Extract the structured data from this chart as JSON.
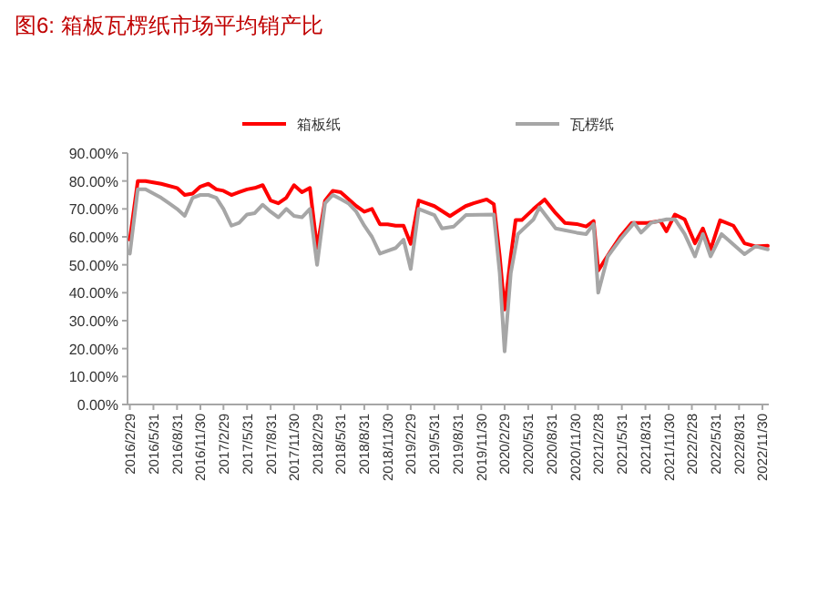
{
  "chart_data": {
    "type": "line",
    "title": "图6:  箱板瓦楞纸市场平均销产比",
    "xlim": [
      "2016-02-20",
      "2022-12-25"
    ],
    "xticks": [
      {
        "value": "2016-02-29",
        "label": "2016/2/29"
      },
      {
        "value": "2016-05-31",
        "label": "2016/5/31"
      },
      {
        "value": "2016-08-31",
        "label": "2016/8/31"
      },
      {
        "value": "2016-11-30",
        "label": "2016/11/30"
      },
      {
        "value": "2017-02-28",
        "label": "2017/2/29"
      },
      {
        "value": "2017-05-31",
        "label": "2017/5/31"
      },
      {
        "value": "2017-08-31",
        "label": "2017/8/31"
      },
      {
        "value": "2017-11-30",
        "label": "2017/11/30"
      },
      {
        "value": "2018-02-28",
        "label": "2018/2/29"
      },
      {
        "value": "2018-05-31",
        "label": "2018/5/31"
      },
      {
        "value": "2018-08-31",
        "label": "2018/8/31"
      },
      {
        "value": "2018-11-30",
        "label": "2018/11/30"
      },
      {
        "value": "2019-02-28",
        "label": "2019/2/29"
      },
      {
        "value": "2019-05-31",
        "label": "2019/5/31"
      },
      {
        "value": "2019-08-31",
        "label": "2019/8/31"
      },
      {
        "value": "2019-11-30",
        "label": "2019/11/30"
      },
      {
        "value": "2020-02-29",
        "label": "2020/2/29"
      },
      {
        "value": "2020-05-31",
        "label": "2020/5/31"
      },
      {
        "value": "2020-08-31",
        "label": "2020/8/31"
      },
      {
        "value": "2020-11-30",
        "label": "2020/11/30"
      },
      {
        "value": "2021-02-28",
        "label": "2021/2/28"
      },
      {
        "value": "2021-05-31",
        "label": "2021/5/31"
      },
      {
        "value": "2021-08-31",
        "label": "2021/8/31"
      },
      {
        "value": "2021-11-30",
        "label": "2021/11/30"
      },
      {
        "value": "2022-02-28",
        "label": "2022/2/28"
      },
      {
        "value": "2022-05-31",
        "label": "2022/5/31"
      },
      {
        "value": "2022-08-31",
        "label": "2022/8/31"
      },
      {
        "value": "2022-11-30",
        "label": "2022/11/30"
      }
    ],
    "ylim": [
      0,
      90
    ],
    "yticks": [
      {
        "value": 0,
        "label": "0.00%"
      },
      {
        "value": 10,
        "label": "10.00%"
      },
      {
        "value": 20,
        "label": "20.00%"
      },
      {
        "value": 30,
        "label": "30.00%"
      },
      {
        "value": 40,
        "label": "40.00%"
      },
      {
        "value": 50,
        "label": "50.00%"
      },
      {
        "value": 60,
        "label": "60.00%"
      },
      {
        "value": 70,
        "label": "70.00%"
      },
      {
        "value": 80,
        "label": "80.00%"
      },
      {
        "value": 90,
        "label": "90.00%"
      }
    ],
    "legend": "top",
    "grid": false,
    "marker": "none",
    "line_style": "solid",
    "series": [
      {
        "name": "箱板纸",
        "color": "#ff0000",
        "x": [
          "2016-02-29",
          "2016-03-31",
          "2016-04-30",
          "2016-06-30",
          "2016-08-31",
          "2016-09-30",
          "2016-10-31",
          "2016-11-30",
          "2016-12-31",
          "2017-01-31",
          "2017-02-28",
          "2017-03-31",
          "2017-04-30",
          "2017-05-31",
          "2017-06-30",
          "2017-07-31",
          "2017-08-31",
          "2017-09-30",
          "2017-10-31",
          "2017-11-30",
          "2017-12-31",
          "2018-01-31",
          "2018-02-28",
          "2018-03-31",
          "2018-04-30",
          "2018-05-31",
          "2018-06-30",
          "2018-07-31",
          "2018-08-31",
          "2018-09-30",
          "2018-10-31",
          "2018-11-30",
          "2018-12-31",
          "2019-01-31",
          "2019-02-28",
          "2019-03-31",
          "2019-04-30",
          "2019-05-31",
          "2019-07-31",
          "2019-09-30",
          "2019-10-31",
          "2019-12-21",
          "2020-01-18",
          "2020-02-10",
          "2020-02-29",
          "2020-03-24",
          "2020-04-12",
          "2020-05-06",
          "2020-06-21",
          "2020-08-03",
          "2020-09-15",
          "2020-10-21",
          "2020-12-06",
          "2021-01-12",
          "2021-02-10",
          "2021-02-28",
          "2021-04-18",
          "2021-05-24",
          "2021-07-09",
          "2021-09-09",
          "2021-10-28",
          "2021-11-21",
          "2021-12-24",
          "2022-01-31",
          "2022-03-12",
          "2022-04-12",
          "2022-05-12",
          "2022-06-18",
          "2022-08-09",
          "2022-09-21",
          "2022-11-03",
          "2022-12-21"
        ],
        "values": [
          59,
          80,
          80,
          79,
          77.5,
          75,
          75.5,
          78,
          79,
          77,
          76.5,
          75,
          76,
          77,
          77.5,
          78.5,
          73,
          72,
          74,
          78.5,
          76,
          77.5,
          56,
          73,
          76.5,
          76,
          73.5,
          71,
          69,
          70,
          64.5,
          64.5,
          64,
          64,
          57.5,
          73,
          72,
          71,
          67.4,
          71,
          72,
          73.4,
          71.7,
          53,
          34,
          53,
          66,
          66,
          70,
          73.4,
          68.5,
          65,
          64.6,
          63.7,
          65.7,
          48,
          55,
          60,
          65,
          65,
          65.7,
          62,
          68,
          66.3,
          57.7,
          63,
          55.5,
          65.9,
          64,
          57.7,
          56.6,
          56.8
        ]
      },
      {
        "name": "瓦楞纸",
        "color": "#a6a6a6",
        "x": [
          "2016-02-29",
          "2016-03-31",
          "2016-04-30",
          "2016-06-30",
          "2016-07-31",
          "2016-08-31",
          "2016-09-30",
          "2016-10-31",
          "2016-11-30",
          "2016-12-31",
          "2017-01-31",
          "2017-02-28",
          "2017-03-31",
          "2017-04-30",
          "2017-05-31",
          "2017-06-30",
          "2017-07-31",
          "2017-08-31",
          "2017-09-30",
          "2017-10-31",
          "2017-11-30",
          "2017-12-31",
          "2018-01-31",
          "2018-02-28",
          "2018-03-31",
          "2018-04-30",
          "2018-05-31",
          "2018-06-30",
          "2018-07-31",
          "2018-08-31",
          "2018-09-30",
          "2018-10-31",
          "2018-11-30",
          "2018-12-31",
          "2019-01-31",
          "2019-02-28",
          "2019-03-31",
          "2019-05-31",
          "2019-06-30",
          "2019-08-15",
          "2019-10-01",
          "2020-01-18",
          "2020-02-10",
          "2020-02-29",
          "2020-03-24",
          "2020-04-21",
          "2020-06-21",
          "2020-07-14",
          "2020-09-15",
          "2020-12-06",
          "2021-01-12",
          "2021-02-10",
          "2021-02-28",
          "2021-04-06",
          "2021-05-24",
          "2021-07-18",
          "2021-08-14",
          "2021-09-22",
          "2021-11-21",
          "2021-12-24",
          "2022-01-31",
          "2022-03-12",
          "2022-04-12",
          "2022-05-12",
          "2022-06-24",
          "2022-09-21",
          "2022-11-03",
          "2022-12-21"
        ],
        "values": [
          54,
          77,
          77,
          74,
          72,
          70,
          67.5,
          74,
          75,
          75,
          74,
          70,
          64,
          65,
          68,
          68.5,
          71.5,
          69,
          67,
          70,
          67.5,
          67,
          70,
          50,
          72,
          75,
          73.5,
          72,
          69,
          64,
          60,
          54,
          55,
          56,
          59,
          48.5,
          70,
          67.8,
          63,
          63.7,
          67.8,
          68,
          47,
          19,
          47,
          61,
          66.3,
          70.6,
          63,
          61.5,
          61,
          64.6,
          40,
          53,
          59,
          65,
          61.5,
          65,
          66.3,
          66.3,
          61,
          53,
          61,
          53,
          61,
          53.8,
          56.6,
          55.5
        ]
      }
    ]
  }
}
